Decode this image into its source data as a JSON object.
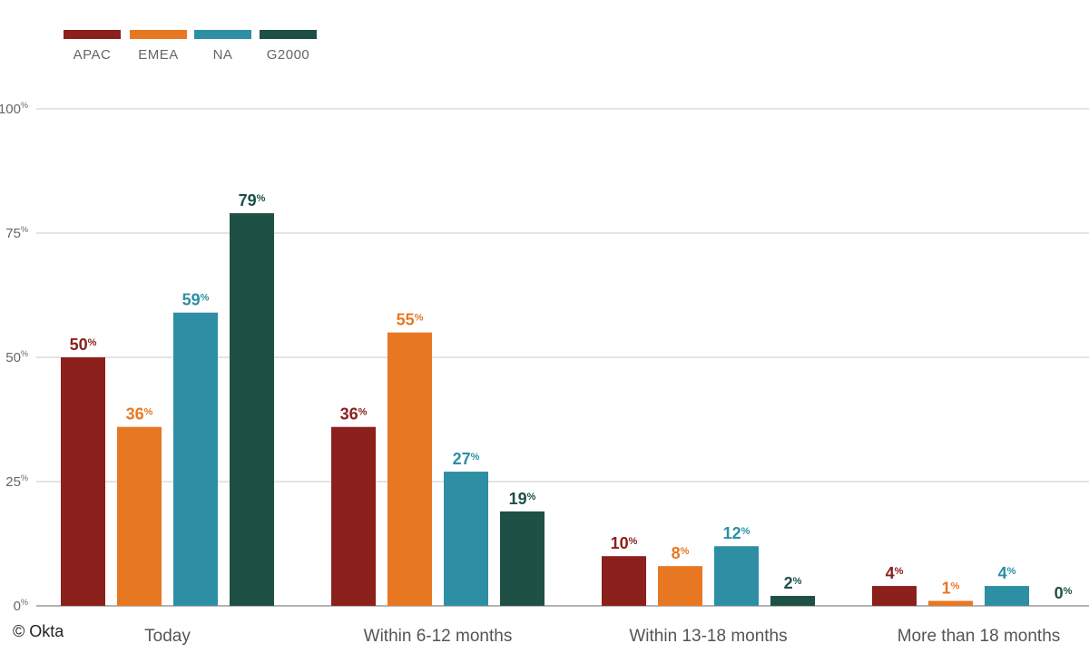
{
  "chart_data": {
    "type": "bar",
    "categories": [
      "Today",
      "Within 6-12 months",
      "Within 13-18 months",
      "More than 18 months"
    ],
    "series": [
      {
        "name": "APAC",
        "color": "#8b201c",
        "values": [
          50,
          36,
          10,
          4
        ]
      },
      {
        "name": "EMEA",
        "color": "#e87722",
        "values": [
          36,
          55,
          8,
          1
        ]
      },
      {
        "name": "NA",
        "color": "#2e8ea3",
        "values": [
          59,
          27,
          12,
          4
        ]
      },
      {
        "name": "G2000",
        "color": "#1e5045",
        "values": [
          79,
          19,
          2,
          0
        ]
      }
    ],
    "value_unit": "%",
    "yticks": [
      {
        "num": "0",
        "pct": "%"
      },
      {
        "num": "25",
        "pct": "%"
      },
      {
        "num": "50",
        "pct": "%"
      },
      {
        "num": "75",
        "pct": "%"
      },
      {
        "num": "100",
        "pct": "%"
      }
    ],
    "ylim": [
      0,
      100
    ],
    "grid": true,
    "legend_position": "top-left",
    "title": "",
    "xlabel": "",
    "ylabel": ""
  },
  "copyright": "© Okta"
}
